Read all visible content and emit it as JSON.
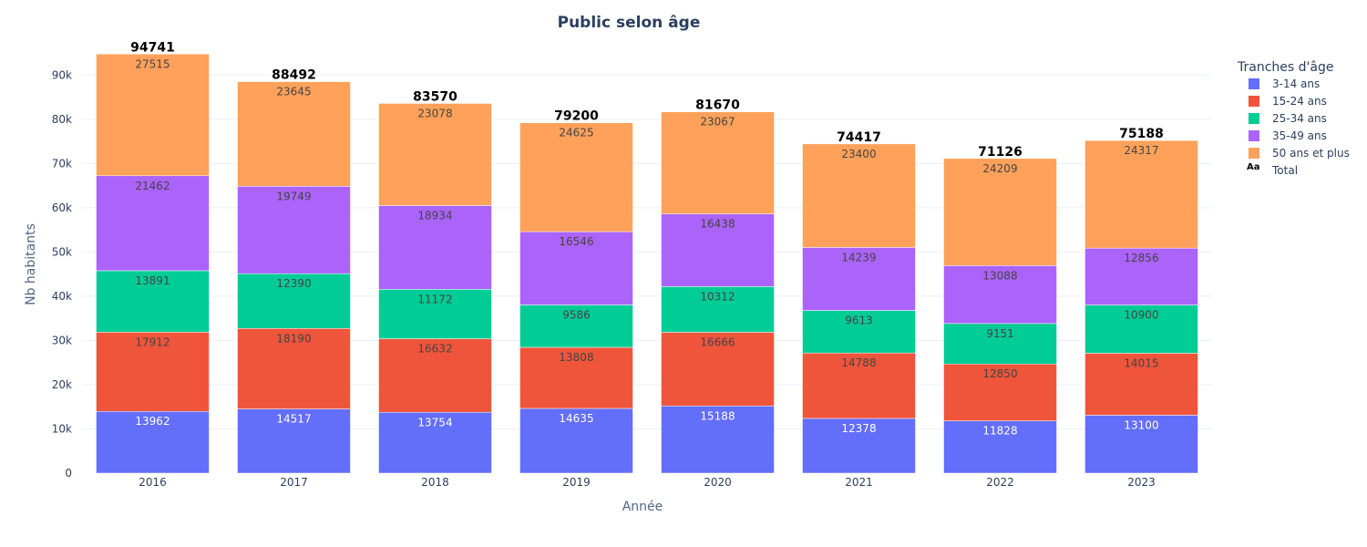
{
  "chart_data": {
    "type": "bar",
    "stacked": true,
    "title": "Public selon âge",
    "xlabel": "Année",
    "ylabel": "Nb habitants",
    "ylim": [
      0,
      95000
    ],
    "y_ticks": [
      0,
      10000,
      20000,
      30000,
      40000,
      50000,
      60000,
      70000,
      80000,
      90000
    ],
    "y_tick_labels": [
      "0",
      "10k",
      "20k",
      "30k",
      "40k",
      "50k",
      "60k",
      "70k",
      "80k",
      "90k"
    ],
    "grid": true,
    "legend_position": "top-right",
    "legend_title": "Tranches d'âge",
    "categories": [
      "2016",
      "2017",
      "2018",
      "2019",
      "2020",
      "2021",
      "2022",
      "2023"
    ],
    "series": [
      {
        "name": "3-14 ans",
        "color": "#636efa",
        "label_color": "#ffffff",
        "values": [
          13962,
          14517,
          13754,
          14635,
          15188,
          12378,
          11828,
          13100
        ]
      },
      {
        "name": "15-24 ans",
        "color": "#ef553b",
        "label_color": "#444444",
        "values": [
          17912,
          18190,
          16632,
          13808,
          16666,
          14788,
          12850,
          14015
        ]
      },
      {
        "name": "25-34 ans",
        "color": "#00cc96",
        "label_color": "#444444",
        "values": [
          13891,
          12390,
          11172,
          9586,
          10312,
          9613,
          9151,
          10900
        ]
      },
      {
        "name": "35-49 ans",
        "color": "#ab63fa",
        "label_color": "#444444",
        "values": [
          21462,
          19749,
          18934,
          16546,
          16438,
          14239,
          13088,
          12856
        ]
      },
      {
        "name": "50 ans et plus",
        "color": "#ffa15a",
        "label_color": "#444444",
        "values": [
          27515,
          23645,
          23078,
          24625,
          23067,
          23400,
          24209,
          24317
        ]
      }
    ],
    "totals_name": "Total",
    "totals_legend_symbol": "Aa",
    "totals": [
      94741,
      88492,
      83570,
      79200,
      81670,
      74417,
      71126,
      75188
    ]
  }
}
